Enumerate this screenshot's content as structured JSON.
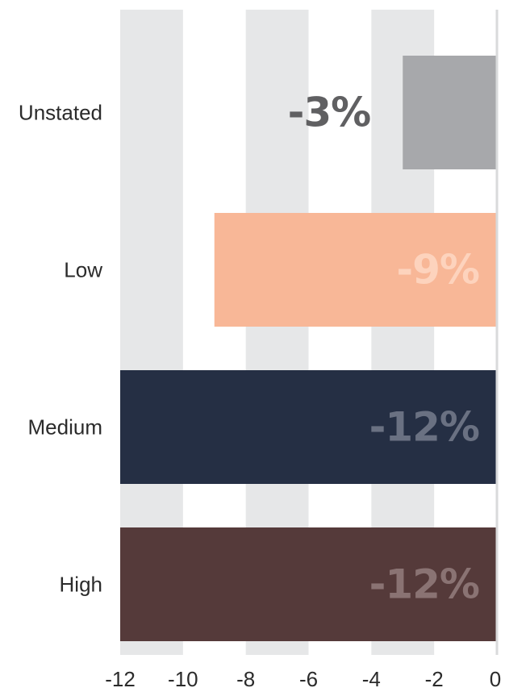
{
  "chart_data": {
    "type": "bar",
    "orientation": "horizontal",
    "categories": [
      "Unstated",
      "Low",
      "Medium",
      "High"
    ],
    "values": [
      -3,
      -9,
      -12,
      -12
    ],
    "data_labels": [
      "-3%",
      "-9%",
      "-12%",
      "-12%"
    ],
    "bar_colors": [
      "#a7a8ab",
      "#f8b797",
      "#252f44",
      "#553a3a"
    ],
    "label_colors": [
      "#606062",
      "#fdd3bd",
      "#6a7182",
      "#8a7373"
    ],
    "xlim": [
      -12,
      0
    ],
    "x_ticks": [
      -12,
      -10,
      -8,
      -6,
      -4,
      -2,
      0
    ],
    "x_tick_labels": [
      "-12",
      "-10",
      "-8",
      "-6",
      "-4",
      "-2",
      "0"
    ],
    "grid_band_color": "#e6e7e8",
    "zero_line_color": "#d9dadb",
    "grid": "alternating vertical bands",
    "legend": "none"
  }
}
